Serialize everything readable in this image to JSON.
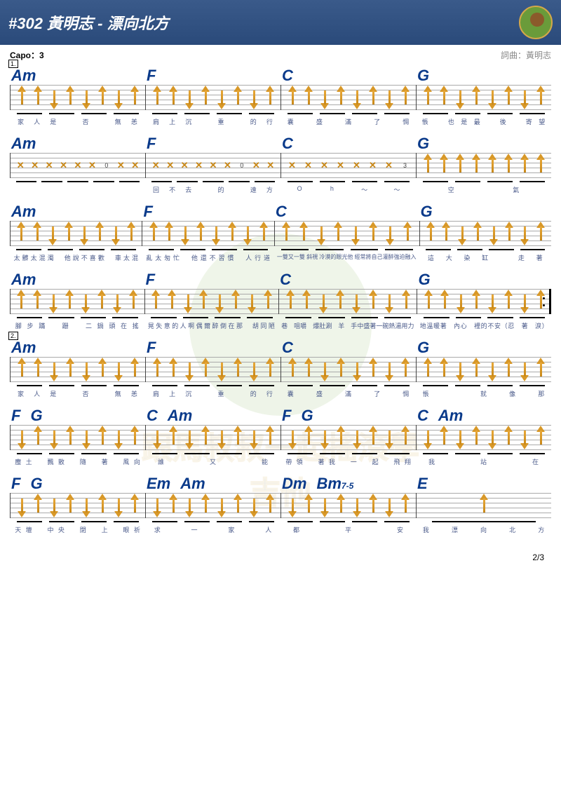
{
  "header": {
    "title": "#302 黃明志 - 漂向北方"
  },
  "meta": {
    "capo": "Capo：3",
    "credit": "詞曲：黃明志"
  },
  "page_num": "2/3",
  "colors": {
    "header_grad_top": "#3a5a8a",
    "chord_color": "#0a3a8a",
    "arrow_color": "#d89828",
    "lyric_color": "#4a5a8a"
  },
  "watermark_text": "跟馬叔叔一起搖滾學吉他",
  "rows": [
    {
      "section": "1.",
      "measures": [
        {
          "chords": [
            "Am"
          ],
          "pattern": "UUDUDUDU",
          "lyrics": "家人是　否　無恙"
        },
        {
          "chords": [
            "F"
          ],
          "pattern": "UUDUDUDU",
          "lyrics": "肩上沉　重　的行"
        },
        {
          "chords": [
            "C"
          ],
          "pattern": "UUDUDUDU",
          "lyrics": "囊　盛　滿　了　惆"
        },
        {
          "chords": [
            "G"
          ],
          "pattern": "UUDUDUDU",
          "lyrics": "悵　也是最　後　寄望"
        }
      ]
    },
    {
      "measures": [
        {
          "chords": [
            "Am"
          ],
          "pattern": "XXXXXX0XX",
          "lyrics": ""
        },
        {
          "chords": [
            "F"
          ],
          "pattern": "XXXXXX0XX",
          "lyrics": "回不去　的　遠方"
        },
        {
          "chords": [
            "C"
          ],
          "pattern": "XXXXXXX3",
          "lyrics": "Oh～～"
        },
        {
          "chords": [
            "G"
          ],
          "pattern": "UUUUUUUU",
          "lyrics": "空氣"
        }
      ]
    },
    {
      "measures": [
        {
          "chords": [
            "Am"
          ],
          "pattern": "UUDUDUDU",
          "lyrics": "太髒太混濁 他說不喜歡　車太混"
        },
        {
          "chords": [
            "F"
          ],
          "pattern": "UUDUDUDU",
          "lyrics": "亂太匆忙 他還不習慣　人行道"
        },
        {
          "chords": [
            "C"
          ],
          "pattern": "UUDUDUDU",
          "lyrics": "一雙又一雙 斜視 冷漠的眼光他 經常將自己灌醉強迫融入"
        },
        {
          "chords": [
            "G"
          ],
          "pattern": "UUDUDUDU",
          "lyrics": "這大染缸　走著"
        }
      ]
    },
    {
      "measures": [
        {
          "chords": [
            "Am"
          ],
          "pattern": "UUDUDUDU",
          "lyrics": "腳步蹣　跚　二鍋頭在搖"
        },
        {
          "chords": [
            "F"
          ],
          "pattern": "UUDUDUDU",
          "lyrics": "晃失意的人啊偶爾醉倒在那 胡同陋"
        },
        {
          "chords": [
            "C"
          ],
          "pattern": "UUDUDUDU",
          "lyrics": "巷　咀嚼　爆肚涮　羊　手中盛著一碗熱湯 用力"
        },
        {
          "chords": [
            "G"
          ],
          "pattern": "UUDUDUDU",
          "lyrics": "地溫暖著　內心　裡的不安（忍　著　淚）",
          "repeat_end": true
        }
      ]
    },
    {
      "section": "2.",
      "measures": [
        {
          "chords": [
            "Am"
          ],
          "pattern": "UUDUDUDU",
          "lyrics": "家人是　否　無恙"
        },
        {
          "chords": [
            "F"
          ],
          "pattern": "UUDUDUDU",
          "lyrics": "肩上沉　重　的行"
        },
        {
          "chords": [
            "C"
          ],
          "pattern": "UUDUDUDU",
          "lyrics": "囊　盛　滿　了　惆"
        },
        {
          "chords": [
            "G"
          ],
          "pattern": "UUDUDUDU",
          "lyrics": "悵　　　就　像　那"
        }
      ]
    },
    {
      "measures": [
        {
          "chords": [
            "F",
            "G"
          ],
          "pattern": "DUDUDUDU",
          "lyrics": "塵土　飄散　隨　著　風向"
        },
        {
          "chords": [
            "C",
            "Am"
          ],
          "pattern": "DUDUDUDU",
          "lyrics": "誰　又　能"
        },
        {
          "chords": [
            "F",
            "G"
          ],
          "pattern": "DUDUDUDU",
          "lyrics": "帶領　著我　一　起　飛翔"
        },
        {
          "chords": [
            "C",
            "Am"
          ],
          "pattern": "DUDUDUDU",
          "lyrics": "我　站　在"
        }
      ]
    },
    {
      "measures": [
        {
          "chords": [
            "F",
            "G"
          ],
          "pattern": "DUDUDUDU",
          "lyrics": "天壇　中央　閉　上　眼祈"
        },
        {
          "chords": [
            "Em",
            "Am"
          ],
          "pattern": "DUDUDUDU",
          "lyrics": "求　一　家　人"
        },
        {
          "chords": [
            "Dm",
            "Bm"
          ],
          "chord_sub": "7-5",
          "pattern": "DUDUDUDU",
          "lyrics": "都　平　安"
        },
        {
          "chords": [
            "E"
          ],
          "pattern": "U",
          "lyrics": "我　漂　向　北　方"
        }
      ]
    }
  ]
}
